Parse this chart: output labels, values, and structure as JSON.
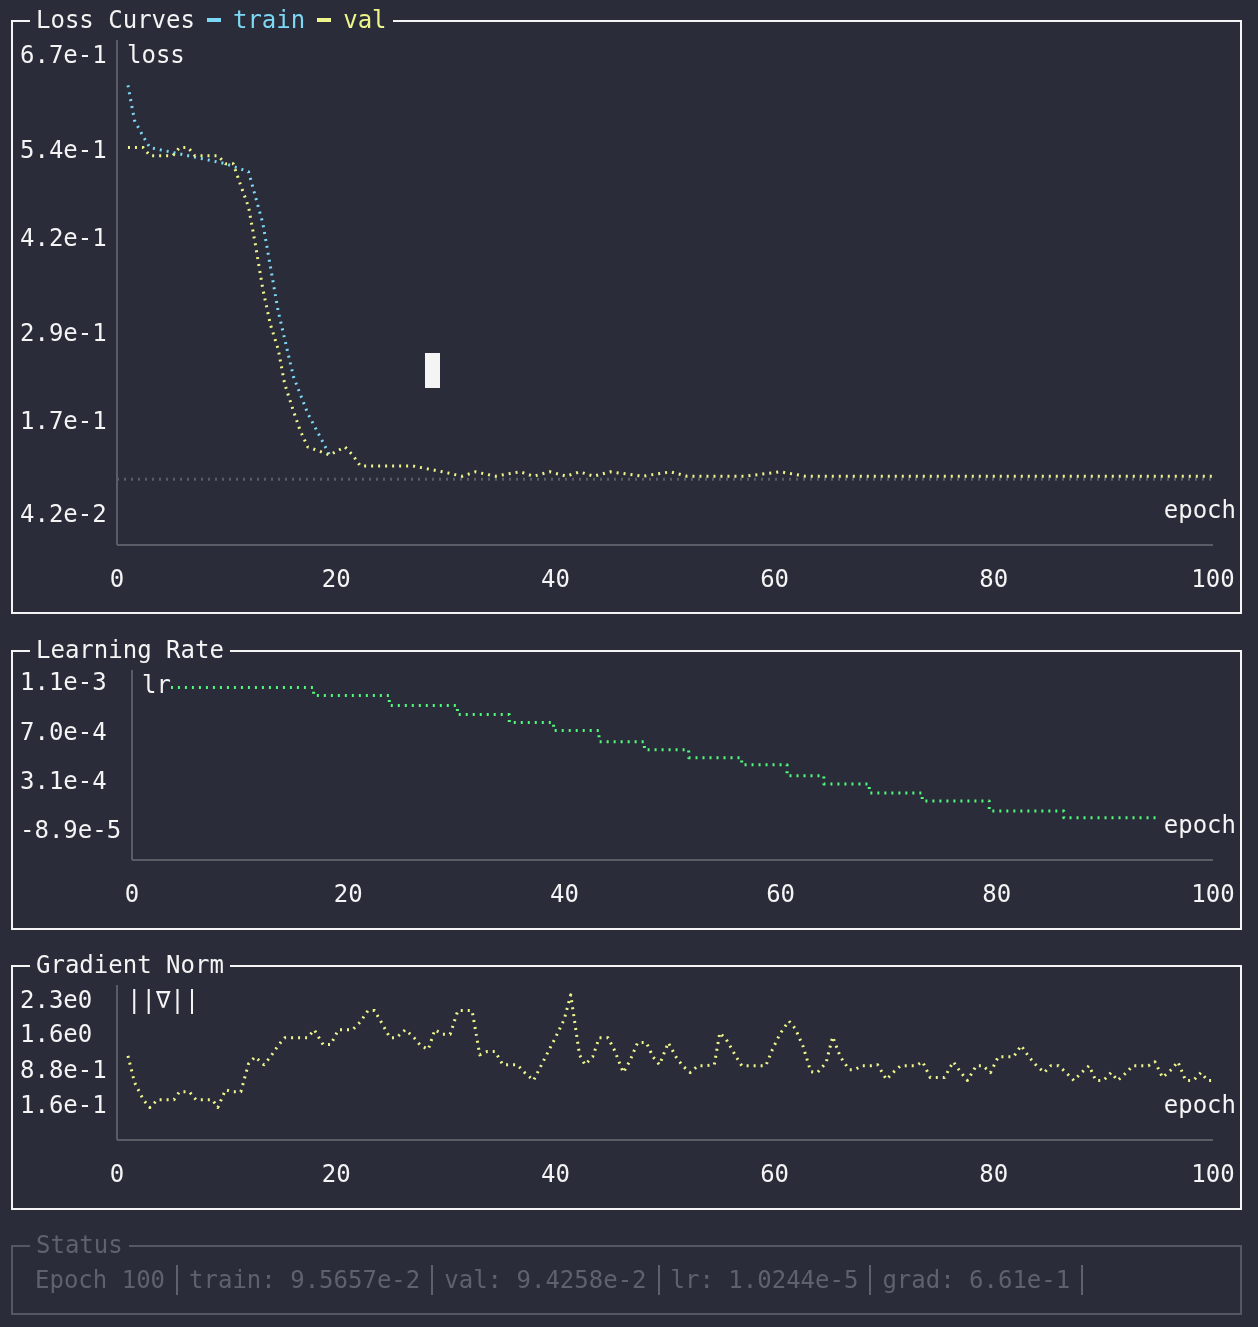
{
  "chart_data": [
    {
      "type": "line",
      "title": "Loss Curves",
      "xlabel": "epoch",
      "ylabel": "loss",
      "legend": "top left",
      "line_style": "dotted",
      "xlim": [
        0,
        100
      ],
      "xticks": [
        0,
        20,
        40,
        60,
        80,
        100
      ],
      "ylim": [
        0,
        0.69
      ],
      "yticks": [
        {
          "value": 0.67,
          "label": "6.7e-1"
        },
        {
          "value": 0.54,
          "label": "5.4e-1"
        },
        {
          "value": 0.42,
          "label": "4.2e-1"
        },
        {
          "value": 0.29,
          "label": "2.9e-1"
        },
        {
          "value": 0.17,
          "label": "1.7e-1"
        },
        {
          "value": 0.042,
          "label": "4.2e-2"
        }
      ],
      "ref_lines": [
        {
          "axis": "y",
          "value": 0.09,
          "color": "#5a5c66",
          "line_style": "dotted"
        }
      ],
      "series": [
        {
          "name": "train",
          "color": "#7dd8f5",
          "x": [
            1,
            1.6,
            2.4,
            3,
            9.9,
            12,
            13.3,
            14.7,
            16.1,
            17.4,
            19.4
          ],
          "values": [
            0.628,
            0.58,
            0.558,
            0.543,
            0.521,
            0.51,
            0.44,
            0.32,
            0.23,
            0.18,
            0.123
          ]
        },
        {
          "name": "val",
          "color": "#eef58a",
          "x": [
            1,
            2.4,
            3,
            5.1,
            5.7,
            6.5,
            7.1,
            9.2,
            9.9,
            10.6,
            11.2,
            12,
            12.6,
            13.3,
            14,
            14.7,
            15.3,
            16.1,
            16.7,
            17.4,
            19.4,
            20.8,
            21.5,
            22.2,
            27,
            29.7,
            31.5,
            32.7,
            34.5,
            36.8,
            38,
            39.5,
            41,
            42.2,
            43.5,
            45,
            48,
            50.5,
            52,
            55,
            57.3,
            60.5,
            62.8,
            65.5,
            69.6,
            72.4,
            75,
            77.8,
            80.1,
            84.7,
            87.4,
            90.1,
            93.2,
            95.6,
            100
          ],
          "values": [
            0.543,
            0.543,
            0.532,
            0.532,
            0.543,
            0.543,
            0.532,
            0.532,
            0.521,
            0.521,
            0.495,
            0.462,
            0.413,
            0.35,
            0.301,
            0.268,
            0.22,
            0.183,
            0.157,
            0.134,
            0.123,
            0.134,
            0.123,
            0.108,
            0.108,
            0.1,
            0.094,
            0.1,
            0.094,
            0.1,
            0.094,
            0.1,
            0.094,
            0.1,
            0.094,
            0.1,
            0.094,
            0.1,
            0.094,
            0.094,
            0.094,
            0.1,
            0.094,
            0.094,
            0.094,
            0.094,
            0.094,
            0.094,
            0.094,
            0.094,
            0.094,
            0.094,
            0.094,
            0.094,
            0.094
          ]
        }
      ]
    },
    {
      "type": "step",
      "title": "Learning Rate",
      "xlabel": "epoch",
      "ylabel": "lr",
      "line_style": "dotted",
      "xlim": [
        0,
        100
      ],
      "xticks": [
        0,
        20,
        40,
        60,
        80,
        100
      ],
      "ylim": [
        -0.00033,
        0.0012
      ],
      "yticks": [
        {
          "value": 0.0011,
          "label": "1.1e-3"
        },
        {
          "value": 0.0007,
          "label": "7.0e-4"
        },
        {
          "value": 0.00031,
          "label": "3.1e-4"
        },
        {
          "value": -8.9e-05,
          "label": "-8.9e-5"
        }
      ],
      "series": [
        {
          "color": "#50fa7b",
          "x": [
            3.6,
            16.8,
            23.8,
            30.1,
            34.9,
            39,
            43.2,
            47.4,
            51.5,
            56.4,
            60.6,
            64,
            68.2,
            73.1,
            79.3,
            86.2,
            94.8
          ],
          "values": [
            0.00106,
            0.000995,
            0.000914,
            0.000841,
            0.000777,
            0.000712,
            0.000623,
            0.000558,
            0.000493,
            0.000437,
            0.000348,
            0.000283,
            0.00021,
            0.000146,
            6.5e-05,
            1e-05,
            1e-05
          ]
        }
      ]
    },
    {
      "type": "line",
      "title": "Gradient Norm",
      "xlabel": "epoch",
      "ylabel": "||∇||",
      "line_style": "dotted",
      "xlim": [
        0,
        100
      ],
      "xticks": [
        0,
        20,
        40,
        60,
        80,
        100
      ],
      "ylim": [
        -0.55,
        2.6
      ],
      "yticks": [
        {
          "value": 2.3,
          "label": "2.3e0"
        },
        {
          "value": 1.6,
          "label": "1.6e0"
        },
        {
          "value": 0.88,
          "label": "8.8e-1"
        },
        {
          "value": 0.16,
          "label": "1.6e-1"
        }
      ],
      "series": [
        {
          "color": "#eef58a",
          "x": [
            1,
            1.6,
            2.4,
            3,
            3.7,
            5.2,
            5.7,
            6.6,
            7.2,
            8.7,
            9.2,
            9.9,
            10.6,
            11.3,
            12,
            12.6,
            13.4,
            14,
            14.7,
            15.3,
            17.4,
            18,
            18.8,
            19.5,
            20.2,
            21.5,
            22.2,
            22.9,
            23.5,
            24.3,
            24.9,
            25.5,
            26.3,
            27.1,
            27.7,
            28.4,
            29,
            29.7,
            30.4,
            31.1,
            32.4,
            33.1,
            33.8,
            34.5,
            35.2,
            36.5,
            37.2,
            38,
            38.6,
            39.4,
            40,
            40.8,
            41.4,
            42.2,
            42.7,
            43.4,
            44,
            44.8,
            45.4,
            46.2,
            46.8,
            47.5,
            48.3,
            48.9,
            49.5,
            50.3,
            51,
            51.6,
            52.3,
            53,
            53.7,
            54.5,
            55,
            55.6,
            56.5,
            57,
            59.2,
            59.8,
            60.5,
            61.3,
            61.9,
            62.6,
            63.3,
            63.9,
            64.7,
            65.3,
            66,
            66.8,
            67.3,
            68,
            68.8,
            69.4,
            70.2,
            70.8,
            71.5,
            72.9,
            73.5,
            74.2,
            75.5,
            76.3,
            77,
            77.6,
            78.4,
            79,
            79.7,
            80.4,
            81.8,
            82.5,
            83.2,
            83.9,
            84.6,
            85.2,
            85.9,
            86.6,
            87.3,
            88,
            88.7,
            89.3,
            90,
            90.7,
            91.3,
            92.1,
            92.7,
            94.1,
            94.7,
            95.4,
            96.2,
            96.8,
            97.5,
            98.2,
            98.9,
            99.5,
            100
          ],
          "values": [
            1.16,
            0.62,
            0.27,
            0.11,
            0.27,
            0.27,
            0.43,
            0.43,
            0.27,
            0.27,
            0.11,
            0.47,
            0.43,
            0.43,
            1.0,
            1.14,
            0.98,
            1.14,
            1.37,
            1.53,
            1.53,
            1.69,
            1.39,
            1.39,
            1.69,
            1.69,
            1.85,
            2.08,
            2.08,
            1.77,
            1.53,
            1.53,
            1.69,
            1.53,
            1.37,
            1.29,
            1.69,
            1.6,
            1.6,
            2.08,
            2.08,
            1.18,
            1.25,
            1.25,
            0.98,
            0.98,
            0.82,
            0.66,
            0.92,
            1.27,
            1.53,
            1.9,
            2.4,
            1.18,
            0.98,
            1.14,
            1.53,
            1.53,
            1.27,
            0.82,
            1.06,
            1.43,
            1.43,
            1.14,
            0.98,
            1.43,
            1.14,
            0.96,
            0.82,
            0.96,
            0.96,
            0.98,
            1.63,
            1.49,
            1.14,
            0.96,
            0.96,
            1.29,
            1.61,
            1.87,
            1.71,
            1.35,
            0.84,
            0.82,
            1.02,
            1.55,
            1.14,
            0.88,
            0.88,
            0.96,
            0.96,
            0.98,
            0.68,
            0.82,
            0.96,
            0.96,
            1.04,
            0.72,
            0.72,
            1.04,
            0.82,
            0.66,
            0.96,
            0.96,
            0.82,
            1.14,
            1.14,
            1.37,
            1.14,
            0.96,
            0.82,
            0.96,
            0.96,
            0.82,
            0.66,
            0.82,
            0.96,
            0.66,
            0.66,
            0.82,
            0.66,
            0.82,
            0.96,
            0.96,
            1.04,
            0.72,
            0.88,
            1.04,
            0.66,
            0.66,
            0.82,
            0.66,
            0.66
          ]
        }
      ]
    },
    {
      "type": "other",
      "title": "Status",
      "annotations": [
        "Epoch 100",
        "train: 9.5657e-2",
        "val: 9.4258e-2",
        "lr: 1.0244e-5",
        "grad: 6.61e-1"
      ]
    }
  ]
}
